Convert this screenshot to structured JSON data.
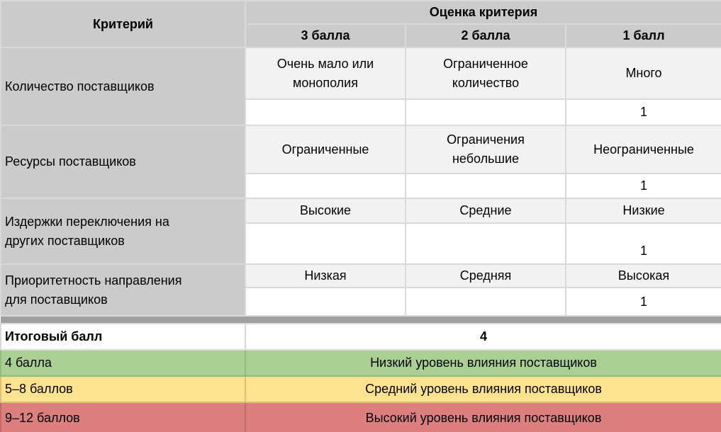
{
  "colors": {
    "header_gray": "#cbcbcb",
    "option_cell_gray": "#f2f2f2",
    "grid_border": "#d9d9d9",
    "separator_gray": "#a0a0a0",
    "legend_green": "#a9cf92",
    "legend_yellow": "#fde28f",
    "legend_red": "#dd7f7f"
  },
  "header": {
    "criterion": "Критерий",
    "score_group": "Оценка критерия",
    "score_levels": [
      "3 балла",
      "2 балла",
      "1 балл"
    ]
  },
  "criteria": [
    {
      "name": "Количество поставщиков",
      "options": [
        "Очень мало или\nмонополия",
        "Ограниченное\nколичество",
        "Много"
      ],
      "marks": [
        "",
        "",
        "1"
      ]
    },
    {
      "name": "Ресурсы поставщиков",
      "options": [
        "Ограниченные",
        "Ограничения\nнебольшие",
        "Неограниченные"
      ],
      "marks": [
        "",
        "",
        "1"
      ]
    },
    {
      "name": "Издержки переключения на\nдругих поставщиков",
      "options": [
        "Высокие",
        "Средние",
        "Низкие"
      ],
      "marks": [
        "",
        "",
        "1"
      ]
    },
    {
      "name": "Приоритетность направления\nдля поставщиков",
      "options": [
        "Низкая",
        "Средняя",
        "Высокая"
      ],
      "marks": [
        "",
        "",
        "1"
      ]
    }
  ],
  "total": {
    "label": "Итоговый балл",
    "value": "4"
  },
  "legend": [
    {
      "range": "4 балла",
      "meaning": "Низкий уровень влияния поставщиков"
    },
    {
      "range": "5–8 баллов",
      "meaning": "Средний уровень влияния поставщиков"
    },
    {
      "range": "9–12 баллов",
      "meaning": "Высокий уровень влияния поставщиков"
    }
  ]
}
